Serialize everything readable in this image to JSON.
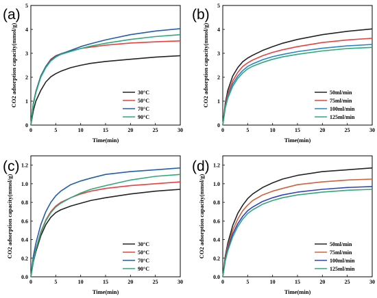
{
  "chart_data": [
    {
      "panel": "(a)",
      "type": "line",
      "xlabel": "Time(min)",
      "ylabel": "CO2 adsorption capacity(mmol/g)",
      "xlim": [
        0,
        30
      ],
      "ylim": [
        0,
        5
      ],
      "xticks": [
        0,
        5,
        10,
        15,
        20,
        25,
        30
      ],
      "yticks": [
        0,
        1,
        2,
        3,
        4,
        5
      ],
      "legend_position": "bottom-right",
      "x": [
        0,
        0.5,
        1,
        2,
        3,
        4,
        5,
        6,
        8,
        10,
        12,
        15,
        20,
        25,
        30
      ],
      "series": [
        {
          "name": "30°C",
          "color": "#222222",
          "values": [
            0,
            0.6,
            1.0,
            1.45,
            1.8,
            2.02,
            2.15,
            2.25,
            2.4,
            2.5,
            2.58,
            2.66,
            2.75,
            2.84,
            2.9
          ]
        },
        {
          "name": "50°C",
          "color": "#e8403c",
          "values": [
            0,
            0.9,
            1.4,
            2.05,
            2.45,
            2.75,
            2.9,
            2.98,
            3.1,
            3.2,
            3.26,
            3.34,
            3.43,
            3.48,
            3.52
          ]
        },
        {
          "name": "70°C",
          "color": "#1f5fa8",
          "values": [
            0,
            0.9,
            1.4,
            2.05,
            2.45,
            2.72,
            2.88,
            2.97,
            3.12,
            3.28,
            3.4,
            3.56,
            3.78,
            3.93,
            4.03
          ]
        },
        {
          "name": "90°C",
          "color": "#2ca87a",
          "values": [
            0,
            0.85,
            1.35,
            2.0,
            2.4,
            2.68,
            2.84,
            2.95,
            3.08,
            3.2,
            3.3,
            3.42,
            3.58,
            3.7,
            3.78
          ]
        }
      ]
    },
    {
      "panel": "(b)",
      "type": "line",
      "xlabel": "Time(min)",
      "ylabel": "CO2 adsorption capacity(mmol/g)",
      "xlim": [
        0,
        30
      ],
      "ylim": [
        0,
        5
      ],
      "xticks": [
        0,
        5,
        10,
        15,
        20,
        25,
        30
      ],
      "yticks": [
        0,
        1,
        2,
        3,
        4,
        5
      ],
      "legend_position": "bottom-right",
      "x": [
        0,
        0.5,
        1,
        2,
        3,
        4,
        5,
        6,
        8,
        10,
        12,
        15,
        20,
        25,
        30
      ],
      "series": [
        {
          "name": "50ml/min",
          "color": "#222222",
          "values": [
            0,
            0.9,
            1.45,
            2.05,
            2.4,
            2.65,
            2.8,
            2.92,
            3.12,
            3.28,
            3.42,
            3.58,
            3.78,
            3.92,
            4.02
          ]
        },
        {
          "name": "75ml/min",
          "color": "#e8403c",
          "values": [
            0,
            0.8,
            1.3,
            1.85,
            2.2,
            2.45,
            2.6,
            2.72,
            2.9,
            3.04,
            3.15,
            3.28,
            3.45,
            3.56,
            3.63
          ]
        },
        {
          "name": "100ml/min",
          "color": "#1f87c8",
          "values": [
            0,
            0.75,
            1.2,
            1.72,
            2.05,
            2.28,
            2.45,
            2.56,
            2.73,
            2.86,
            2.95,
            3.07,
            3.21,
            3.31,
            3.37
          ]
        },
        {
          "name": "125ml/min",
          "color": "#2ca87a",
          "values": [
            0,
            0.7,
            1.12,
            1.62,
            1.95,
            2.18,
            2.35,
            2.46,
            2.62,
            2.75,
            2.85,
            2.96,
            3.1,
            3.2,
            3.25
          ]
        }
      ]
    },
    {
      "panel": "(c)",
      "type": "line",
      "xlabel": "Time(min)",
      "ylabel": "CO2 adsorption capacity(mmol/g)",
      "xlim": [
        0,
        30
      ],
      "ylim": [
        0,
        1.3
      ],
      "xticks": [
        0,
        5,
        10,
        15,
        20,
        25,
        30
      ],
      "yticks": [
        0.0,
        0.2,
        0.4,
        0.6,
        0.8,
        1.0,
        1.2
      ],
      "legend_position": "bottom-right",
      "x": [
        0,
        0.5,
        1,
        2,
        3,
        4,
        5,
        6,
        8,
        10,
        12,
        15,
        20,
        25,
        30
      ],
      "series": [
        {
          "name": "30°C",
          "color": "#222222",
          "values": [
            0,
            0.16,
            0.27,
            0.44,
            0.56,
            0.64,
            0.69,
            0.72,
            0.76,
            0.79,
            0.82,
            0.85,
            0.89,
            0.92,
            0.94
          ]
        },
        {
          "name": "50°C",
          "color": "#e8403c",
          "values": [
            0,
            0.18,
            0.3,
            0.48,
            0.61,
            0.7,
            0.76,
            0.8,
            0.85,
            0.89,
            0.92,
            0.95,
            0.98,
            1.0,
            1.02
          ]
        },
        {
          "name": "70°C",
          "color": "#1f5fa8",
          "values": [
            0,
            0.22,
            0.36,
            0.56,
            0.7,
            0.8,
            0.87,
            0.92,
            0.99,
            1.03,
            1.06,
            1.1,
            1.13,
            1.15,
            1.17
          ]
        },
        {
          "name": "90°C",
          "color": "#2ca87a",
          "values": [
            0,
            0.17,
            0.29,
            0.47,
            0.6,
            0.69,
            0.75,
            0.79,
            0.85,
            0.9,
            0.94,
            0.98,
            1.04,
            1.08,
            1.1
          ]
        }
      ]
    },
    {
      "panel": "(d)",
      "type": "line",
      "xlabel": "Time(min)",
      "ylabel": "CO2 adsorption capacity(mmol/g)",
      "xlim": [
        0,
        30
      ],
      "ylim": [
        0,
        1.3
      ],
      "xticks": [
        0,
        5,
        10,
        15,
        20,
        25,
        30
      ],
      "yticks": [
        0.0,
        0.2,
        0.4,
        0.6,
        0.8,
        1.0,
        1.2
      ],
      "legend_position": "bottom-right",
      "x": [
        0,
        0.5,
        1,
        2,
        3,
        4,
        5,
        6,
        8,
        10,
        12,
        15,
        20,
        25,
        30
      ],
      "series": [
        {
          "name": "50ml/min",
          "color": "#222222",
          "values": [
            0,
            0.22,
            0.36,
            0.55,
            0.68,
            0.77,
            0.84,
            0.89,
            0.96,
            1.01,
            1.05,
            1.09,
            1.13,
            1.15,
            1.17
          ]
        },
        {
          "name": "75ml/min",
          "color": "#d0603a",
          "values": [
            0,
            0.2,
            0.33,
            0.5,
            0.62,
            0.71,
            0.77,
            0.82,
            0.88,
            0.92,
            0.95,
            0.99,
            1.02,
            1.04,
            1.05
          ]
        },
        {
          "name": "100ml/min",
          "color": "#3040c0",
          "values": [
            0,
            0.18,
            0.3,
            0.46,
            0.57,
            0.65,
            0.71,
            0.75,
            0.81,
            0.85,
            0.88,
            0.91,
            0.94,
            0.96,
            0.97
          ]
        },
        {
          "name": "125ml/min",
          "color": "#2ca87a",
          "values": [
            0,
            0.17,
            0.28,
            0.43,
            0.54,
            0.62,
            0.68,
            0.72,
            0.78,
            0.82,
            0.85,
            0.88,
            0.91,
            0.93,
            0.94
          ]
        }
      ]
    }
  ]
}
